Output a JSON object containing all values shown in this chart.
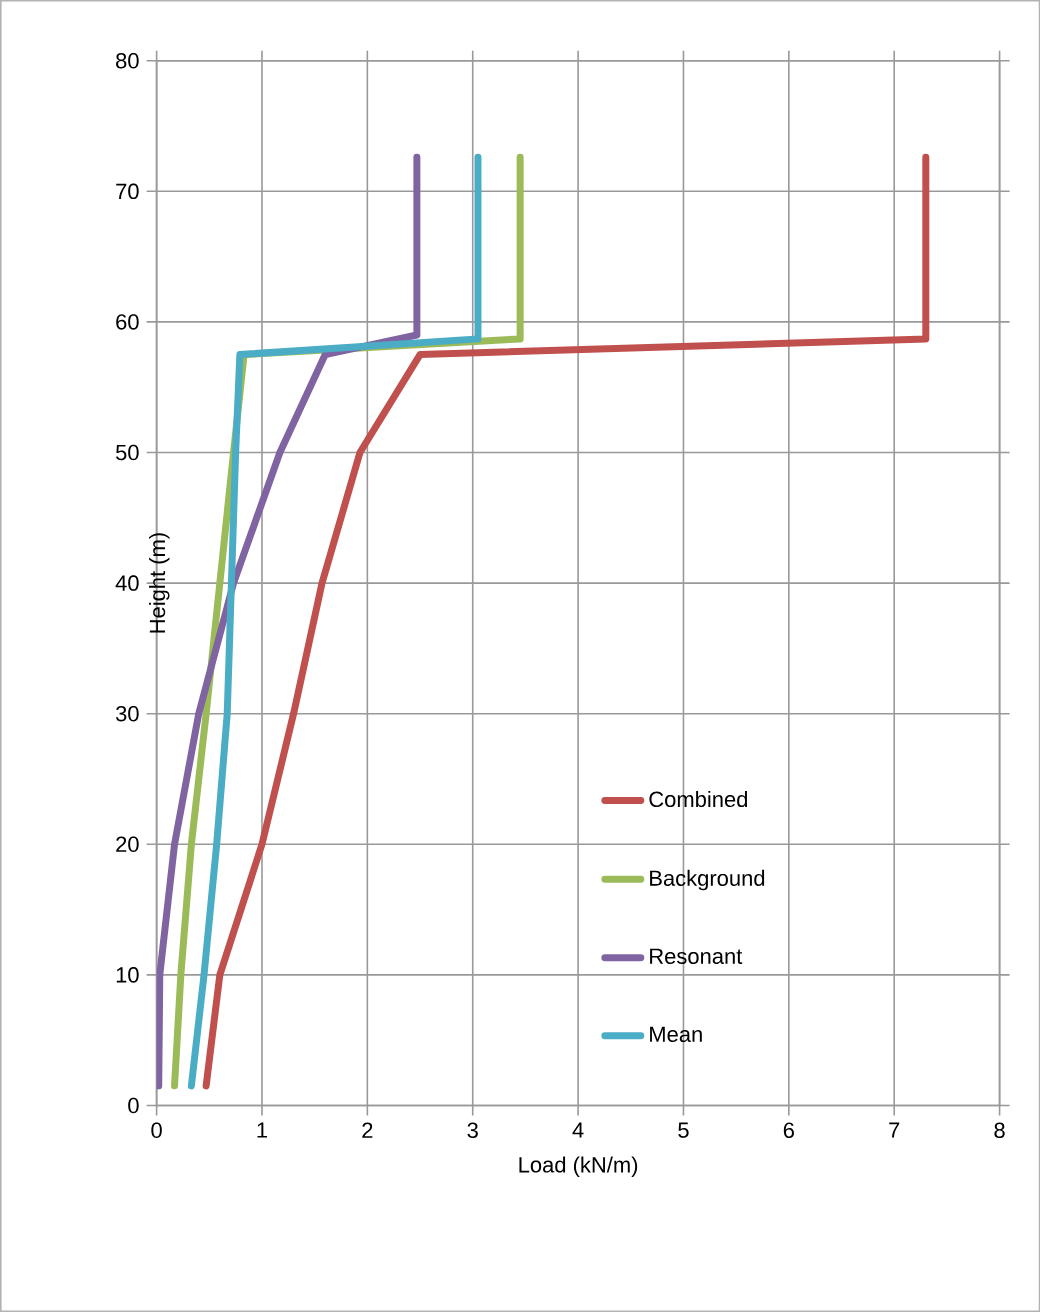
{
  "chart_data": {
    "type": "line",
    "xlabel": "Load (kN/m)",
    "ylabel": "Height (m)",
    "xlim": [
      0,
      8
    ],
    "ylim": [
      0,
      80
    ],
    "xticks": [
      0,
      1,
      2,
      3,
      4,
      5,
      6,
      7,
      8
    ],
    "yticks": [
      0,
      10,
      20,
      30,
      40,
      50,
      60,
      70,
      80
    ],
    "grid": true,
    "legend": "right",
    "marker": "none",
    "line_style": "solid",
    "series": [
      {
        "name": "Combined",
        "color": "#c0504d",
        "x": [
          0.47,
          0.6,
          1.0,
          1.3,
          1.57,
          1.93,
          2.5,
          7.3,
          7.3
        ],
        "values": [
          1.5,
          10,
          20,
          30,
          40,
          50,
          57.5,
          58.7,
          72.6
        ]
      },
      {
        "name": "Background",
        "color": "#9bbb59",
        "x": [
          0.17,
          0.23,
          0.33,
          0.47,
          0.6,
          0.73,
          0.83,
          3.45,
          3.45
        ],
        "values": [
          1.5,
          10,
          20,
          30,
          40,
          50,
          57.5,
          58.7,
          72.6
        ]
      },
      {
        "name": "Resonant",
        "color": "#8064a2",
        "x": [
          0.02,
          0.03,
          0.17,
          0.4,
          0.73,
          1.17,
          1.6,
          2.47,
          2.47
        ],
        "values": [
          1.5,
          10,
          20,
          30,
          40,
          50,
          57.5,
          59,
          72.6
        ]
      },
      {
        "name": "Mean",
        "color": "#4bacc6",
        "x": [
          0.33,
          0.45,
          0.57,
          0.67,
          0.71,
          0.75,
          0.79,
          3.05,
          3.05
        ],
        "values": [
          1.5,
          10,
          20,
          30,
          40,
          50,
          57.5,
          58.7,
          72.6
        ]
      }
    ]
  }
}
